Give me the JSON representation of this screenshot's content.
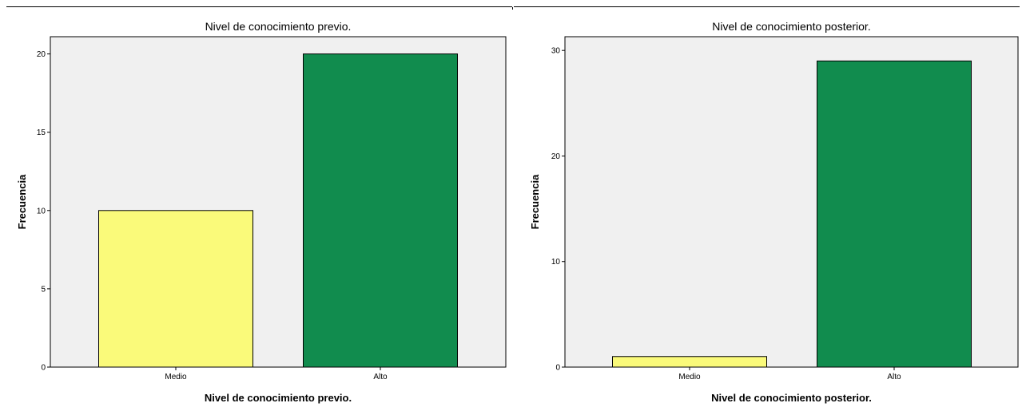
{
  "chart_data": [
    {
      "type": "bar",
      "title": "Nivel de conocimiento previo.",
      "xlabel": "Nivel de conocimiento previo.",
      "ylabel": "Frecuencia",
      "categories": [
        "Medio",
        "Alto"
      ],
      "values": [
        10,
        20
      ],
      "colors": [
        "#fafa7a",
        "#118c4e"
      ],
      "ylim": [
        0,
        21.1
      ],
      "yticks": [
        0,
        5,
        10,
        15,
        20
      ],
      "plot_background": "#f0f0f0",
      "grid": false
    },
    {
      "type": "bar",
      "title": "Nivel de conocimiento posterior.",
      "xlabel": "Nivel de conocimiento posterior.",
      "ylabel": "Frecuencia",
      "categories": [
        "Medio",
        "Alto"
      ],
      "values": [
        1,
        29
      ],
      "colors": [
        "#fafa7a",
        "#118c4e"
      ],
      "ylim": [
        0,
        31.3
      ],
      "yticks": [
        0,
        10,
        20,
        30
      ],
      "plot_background": "#f0f0f0",
      "grid": false
    }
  ]
}
